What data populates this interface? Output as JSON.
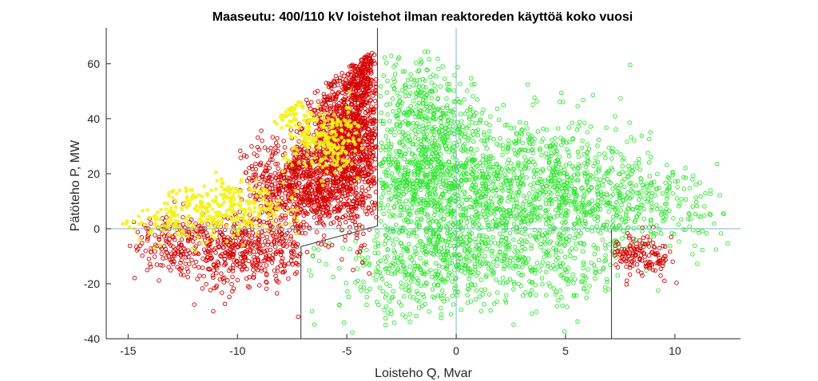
{
  "chart_data": {
    "type": "scatter",
    "title": "Maaseutu: 400/110 kV loistehot ilman reaktoreden käyttöä koko vuosi",
    "xlabel": "Loisteho Q, Mvar",
    "ylabel": "Pätöteho P, MW",
    "xlim": [
      -16,
      13
    ],
    "ylim": [
      -40,
      73
    ],
    "xticks": [
      -15,
      -10,
      -5,
      0,
      5,
      10
    ],
    "yticks": [
      -40,
      -20,
      0,
      20,
      40,
      60
    ],
    "grid": false,
    "legend": "none",
    "colors": {
      "green": "#2ee62e",
      "red": "#d40000",
      "yellow": "#f2f21a",
      "axis": "#262626",
      "zero_lines": "#7fb7c8",
      "limit_lines": "#404040"
    },
    "reference_lines": [
      {
        "kind": "vertical",
        "x": 0
      },
      {
        "kind": "horizontal",
        "y": 0
      }
    ],
    "limit_boundary": [
      [
        -3.6,
        73
      ],
      [
        -3.6,
        1.0
      ],
      [
        -7.1,
        -6.5
      ],
      [
        -7.1,
        -40
      ]
    ],
    "limit_right": [
      [
        7.1,
        -40
      ],
      [
        7.1,
        -0.3
      ]
    ],
    "series": [
      {
        "color": "green",
        "marker": "circle-open",
        "clusters": [
          {
            "cx": -1.5,
            "cy": 22,
            "sx": 1.6,
            "sy": 14,
            "xmin": -3.5,
            "xmax": 1.5,
            "n": 650
          },
          {
            "cx": 3.0,
            "cy": 15,
            "sx": 3.0,
            "sy": 13,
            "xmin": -3.5,
            "xmax": 12.5,
            "n": 1150
          },
          {
            "cx": 8.5,
            "cy": 8,
            "sx": 2.2,
            "sy": 8,
            "xmin": 4.0,
            "xmax": 12.5,
            "n": 260
          },
          {
            "cx": -2.0,
            "cy": 48,
            "sx": 1.3,
            "sy": 9,
            "xmin": -3.5,
            "xmax": 1.0,
            "n": 150
          },
          {
            "cx": 0.0,
            "cy": -10,
            "sx": 3.0,
            "sy": 8,
            "xmin": -7.0,
            "xmax": 7.0,
            "n": 520
          },
          {
            "cx": -2.5,
            "cy": -24,
            "sx": 2.0,
            "sy": 6,
            "xmin": -7.0,
            "xmax": 2.0,
            "n": 90
          },
          {
            "cx": 5.0,
            "cy": -18,
            "sx": 1.5,
            "sy": 6,
            "xmin": 1.0,
            "xmax": 7.0,
            "n": 90
          }
        ]
      },
      {
        "color": "red",
        "marker": "circle-open",
        "clusters": [
          {
            "cx": -4.9,
            "cy": 33,
            "sx": 0.9,
            "sy": 14,
            "xmin": -7.5,
            "xmax": -3.65,
            "n": 1150
          },
          {
            "cx": -7.0,
            "cy": 16,
            "sx": 1.3,
            "sy": 9,
            "xmin": -10,
            "xmax": -3.65,
            "n": 750
          },
          {
            "cx": -4.3,
            "cy": 57,
            "sx": 0.4,
            "sy": 5,
            "xmin": -5.5,
            "xmax": -3.65,
            "n": 160
          },
          {
            "cx": -9.5,
            "cy": -8,
            "sx": 2.3,
            "sy": 7,
            "xmin": -15,
            "xmax": -7.2,
            "n": 480
          },
          {
            "cx": -12.5,
            "cy": -5,
            "sx": 1.5,
            "sy": 5,
            "xmin": -15,
            "xmax": -9,
            "n": 130
          },
          {
            "cx": 8.5,
            "cy": -10,
            "sx": 0.8,
            "sy": 4,
            "xmin": 7.2,
            "xmax": 10.2,
            "n": 140
          }
        ]
      },
      {
        "color": "yellow",
        "marker": "circle-filled",
        "clusters": [
          {
            "cx": -6.0,
            "cy": 33,
            "sx": 0.9,
            "sy": 6,
            "xmin": -8,
            "xmax": -4.2,
            "n": 230
          },
          {
            "cx": -10.5,
            "cy": 7,
            "sx": 1.6,
            "sy": 5,
            "xmin": -15,
            "xmax": -7,
            "n": 300
          },
          {
            "cx": -13.5,
            "cy": 2,
            "sx": 0.9,
            "sy": 4,
            "xmin": -15.5,
            "xmax": -11,
            "n": 60
          },
          {
            "cx": -7.8,
            "cy": 45,
            "sx": 0.5,
            "sy": 4,
            "xmin": -9,
            "xmax": -6.5,
            "n": 40
          }
        ]
      }
    ]
  }
}
